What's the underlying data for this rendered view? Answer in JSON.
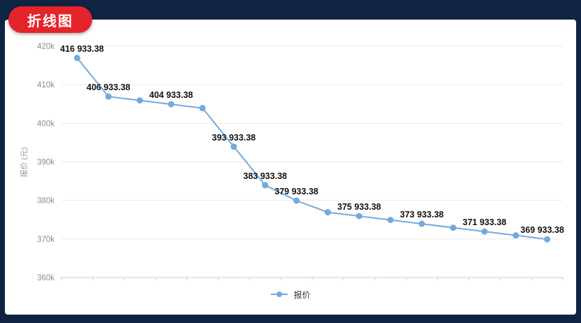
{
  "badge": {
    "label": "折线图"
  },
  "legend": {
    "items": [
      {
        "label": "报价",
        "color": "#72aadd"
      }
    ]
  },
  "colors": {
    "background_navy": "#0f2342",
    "panel_white": "#ffffff",
    "badge_red": "#e5232b",
    "line_blue": "#72aadd",
    "point_label_text": "#111111",
    "axis_tick_text": "#8c8c8c",
    "gridline": "#e9e9e9",
    "axis_line": "#cccccc"
  },
  "chart_data": {
    "type": "line",
    "title": "",
    "series": [
      {
        "name": "报价",
        "color": "#72aadd",
        "values": [
          416933.38,
          406933.38,
          405933.38,
          404933.38,
          403933.38,
          393933.38,
          383933.38,
          379933.38,
          376933.38,
          375933.38,
          374933.38,
          373933.38,
          372933.38,
          371933.38,
          370933.38,
          369933.38
        ],
        "point_labels": [
          "416 933.38",
          "406 933.38",
          null,
          "404 933.38",
          null,
          "393 933.38",
          "383 933.38",
          "379 933.38",
          null,
          "375 933.38",
          null,
          "373 933.38",
          null,
          "371 933.38",
          null,
          "369 933.38"
        ]
      }
    ],
    "x_axis": {
      "labels_visible": false,
      "num_points": 16
    },
    "y_axis": {
      "title": "报价 (元)",
      "tick_labels": [
        "420k",
        "410k",
        "400k",
        "390k",
        "380k",
        "370k",
        "360k"
      ],
      "min": 360000,
      "max": 420000,
      "tick_step": 10000
    },
    "legend_position": "bottom",
    "grid": true
  }
}
